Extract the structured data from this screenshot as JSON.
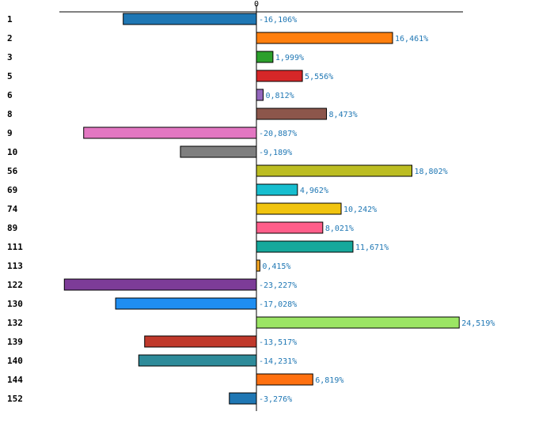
{
  "chart_data": {
    "type": "bar",
    "orientation": "horizontal",
    "title": "",
    "xlabel": "",
    "ylabel": "",
    "xlim": [
      -25,
      25
    ],
    "zero_tick_label": "0",
    "value_suffix": "%",
    "decimal_separator": ",",
    "grid": false,
    "categories": [
      "1",
      "2",
      "3",
      "5",
      "6",
      "8",
      "9",
      "10",
      "56",
      "69",
      "74",
      "89",
      "111",
      "113",
      "122",
      "130",
      "132",
      "139",
      "140",
      "144",
      "152"
    ],
    "values": [
      -16.106,
      16.461,
      1.999,
      5.556,
      0.812,
      8.473,
      -20.887,
      -9.189,
      18.802,
      4.962,
      10.242,
      8.021,
      11.671,
      0.415,
      -23.227,
      -17.028,
      24.519,
      -13.517,
      -14.231,
      6.819,
      -3.276
    ],
    "value_labels": [
      "-16,106%",
      "16,461%",
      "1,999%",
      "5,556%",
      "0,812%",
      "8,473%",
      "-20,887%",
      "-9,189%",
      "18,802%",
      "4,962%",
      "10,242%",
      "8,021%",
      "11,671%",
      "0,415%",
      "-23,227%",
      "-17,028%",
      "24,519%",
      "-13,517%",
      "-14,231%",
      "6,819%",
      "-3,276%"
    ],
    "colors": [
      "#1f77b4",
      "#ff7f0e",
      "#2ca02c",
      "#d62728",
      "#9467bd",
      "#8c564b",
      "#e377c2",
      "#7f7f7f",
      "#bcbd22",
      "#17becf",
      "#f1c40f",
      "#ff5e8a",
      "#16a89c",
      "#f5a623",
      "#7d3c98",
      "#1f8ef1",
      "#9be564",
      "#c0392b",
      "#2e8b9a",
      "#ff7010",
      "#1f77b4"
    ]
  }
}
